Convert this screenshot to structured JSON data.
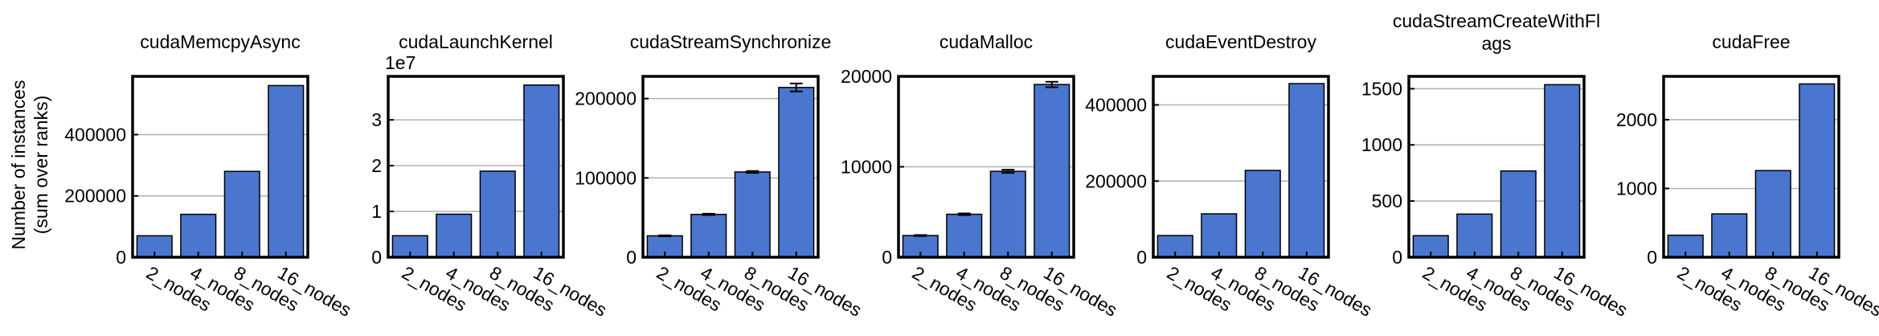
{
  "figure": {
    "ylabel_line1": "Number of instances",
    "ylabel_line2": "(sum over ranks)",
    "bar_color": "#4a76d0",
    "grid": true
  },
  "chart_data": [
    {
      "type": "bar",
      "title": [
        "cudaMemcpyAsync"
      ],
      "categories": [
        "2_nodes",
        "4_nodes",
        "8_nodes",
        "16_nodes"
      ],
      "values": [
        70000,
        140000,
        280000,
        560000
      ],
      "ylim": [
        0,
        590000
      ],
      "yticks": [
        0,
        200000,
        400000
      ],
      "yticklabels": [
        "0",
        "200000",
        "400000"
      ]
    },
    {
      "type": "bar",
      "title": [
        "cudaLaunchKernel"
      ],
      "offset_text": "1e7",
      "categories": [
        "2_nodes",
        "4_nodes",
        "8_nodes",
        "16_nodes"
      ],
      "values": [
        0.47,
        0.94,
        1.88,
        3.76
      ],
      "ylim": [
        0,
        3.95
      ],
      "yticks": [
        0,
        1,
        2,
        3
      ],
      "yticklabels": [
        "0",
        "1",
        "2",
        "3"
      ]
    },
    {
      "type": "bar",
      "title": [
        "cudaStreamSynchronize"
      ],
      "categories": [
        "2_nodes",
        "4_nodes",
        "8_nodes",
        "16_nodes"
      ],
      "values": [
        27000,
        54000,
        107500,
        214000
      ],
      "errors": [
        600,
        800,
        1200,
        5000
      ],
      "ylim": [
        0,
        228000
      ],
      "yticks": [
        0,
        100000,
        200000
      ],
      "yticklabels": [
        "0",
        "100000",
        "200000"
      ]
    },
    {
      "type": "bar",
      "title": [
        "cudaMalloc"
      ],
      "categories": [
        "2_nodes",
        "4_nodes",
        "8_nodes",
        "16_nodes"
      ],
      "values": [
        2400,
        4750,
        9500,
        19100
      ],
      "errors": [
        60,
        90,
        180,
        300
      ],
      "ylim": [
        0,
        20000
      ],
      "yticks": [
        0,
        10000,
        20000
      ],
      "yticklabels": [
        "0",
        "10000",
        "20000"
      ]
    },
    {
      "type": "bar",
      "title": [
        "cudaEventDestroy"
      ],
      "categories": [
        "2_nodes",
        "4_nodes",
        "8_nodes",
        "16_nodes"
      ],
      "values": [
        57000,
        114000,
        228000,
        456000
      ],
      "ylim": [
        0,
        475000
      ],
      "yticks": [
        0,
        200000,
        400000
      ],
      "yticklabels": [
        "0",
        "200000",
        "400000"
      ]
    },
    {
      "type": "bar",
      "title": [
        "cudaStreamCreateWithFl",
        "ags"
      ],
      "categories": [
        "2_nodes",
        "4_nodes",
        "8_nodes",
        "16_nodes"
      ],
      "values": [
        192,
        384,
        768,
        1536
      ],
      "ylim": [
        0,
        1610
      ],
      "yticks": [
        0,
        500,
        1000,
        1500
      ],
      "yticklabels": [
        "0",
        "500",
        "1000",
        "1500"
      ]
    },
    {
      "type": "bar",
      "title": [
        "cudaFree"
      ],
      "categories": [
        "2_nodes",
        "4_nodes",
        "8_nodes",
        "16_nodes"
      ],
      "values": [
        320,
        630,
        1260,
        2520
      ],
      "ylim": [
        0,
        2630
      ],
      "yticks": [
        0,
        1000,
        2000
      ],
      "yticklabels": [
        "0",
        "1000",
        "2000"
      ]
    }
  ]
}
